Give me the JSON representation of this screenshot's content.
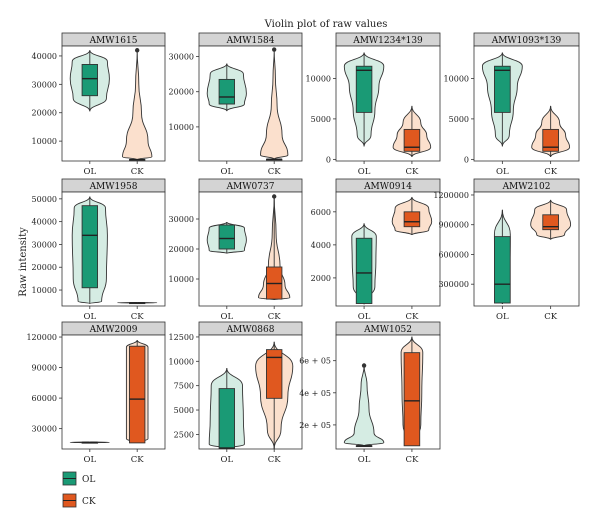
{
  "title": "Violin plot of raw values",
  "ylabel": "Raw intensity",
  "colors": {
    "OL": "#1a9a75",
    "CK": "#e0581f",
    "OL_violin": "#d5ece3",
    "CK_violin": "#fbe0cd",
    "strip": "#d4d4d4"
  },
  "legend": [
    {
      "label": "OL",
      "color": "#1a9a75"
    },
    {
      "label": "CK",
      "color": "#e0581f"
    }
  ],
  "chart_data": [
    {
      "type": "violin",
      "title": "AMW1615",
      "categories": [
        "OL",
        "CK"
      ],
      "ylim": [
        3000,
        43500
      ],
      "yticks": [
        10000,
        20000,
        30000,
        40000
      ],
      "ytick_labels": [
        "10000",
        "20000",
        "30000",
        "40000"
      ],
      "series": [
        {
          "name": "OL",
          "violin": [
            [
              20500,
              0
            ],
            [
              25000,
              0.85
            ],
            [
              32000,
              1.0
            ],
            [
              38000,
              0.9
            ],
            [
              42000,
              0
            ]
          ],
          "box": {
            "min": 20500,
            "q1": 26000,
            "median": 32000,
            "q3": 37000,
            "max": 42000
          },
          "outliers": []
        },
        {
          "name": "CK",
          "violin": [
            [
              3500,
              0
            ],
            [
              4500,
              0.75
            ],
            [
              10000,
              0.55
            ],
            [
              20000,
              0.22
            ],
            [
              30000,
              0.08
            ],
            [
              42000,
              0
            ]
          ],
          "box": {
            "min": 3500,
            "q1": 3500,
            "median": 3500,
            "q3": 3500,
            "max": 3500
          },
          "outliers": [
            42000
          ]
        }
      ]
    },
    {
      "type": "violin",
      "title": "AMW1584",
      "categories": [
        "OL",
        "CK"
      ],
      "ylim": [
        300,
        33000
      ],
      "yticks": [
        10000,
        20000,
        30000
      ],
      "ytick_labels": [
        "10000",
        "20000",
        "30000"
      ],
      "series": [
        {
          "name": "OL",
          "violin": [
            [
              14500,
              0
            ],
            [
              16500,
              0.9
            ],
            [
              19500,
              1.0
            ],
            [
              25000,
              0.85
            ],
            [
              28000,
              0
            ]
          ],
          "box": {
            "min": 14500,
            "q1": 16500,
            "median": 18500,
            "q3": 23500,
            "max": 28000
          },
          "outliers": []
        },
        {
          "name": "CK",
          "violin": [
            [
              800,
              0
            ],
            [
              2000,
              0.7
            ],
            [
              8000,
              0.4
            ],
            [
              16000,
              0.15
            ],
            [
              24000,
              0.06
            ],
            [
              32000,
              0
            ]
          ],
          "box": {
            "min": 800,
            "q1": 800,
            "median": 800,
            "q3": 800,
            "max": 800
          },
          "outliers": [
            32000
          ]
        }
      ]
    },
    {
      "type": "violin",
      "title": "AMW1234*139",
      "categories": [
        "OL",
        "CK"
      ],
      "ylim": [
        -200,
        14000
      ],
      "yticks": [
        0,
        5000,
        10000
      ],
      "ytick_labels": [
        "0",
        "5000",
        "10000"
      ],
      "series": [
        {
          "name": "OL",
          "violin": [
            [
              1600,
              0
            ],
            [
              3000,
              0.35
            ],
            [
              6000,
              0.55
            ],
            [
              9000,
              0.75
            ],
            [
              11500,
              1.0
            ],
            [
              13200,
              0
            ]
          ],
          "box": {
            "min": 1600,
            "q1": 5800,
            "median": 11000,
            "q3": 11500,
            "max": 13200
          },
          "outliers": []
        },
        {
          "name": "CK",
          "violin": [
            [
              300,
              0
            ],
            [
              1500,
              0.95
            ],
            [
              3000,
              0.75
            ],
            [
              4500,
              0.45
            ],
            [
              6600,
              0
            ]
          ],
          "box": {
            "min": 300,
            "q1": 1000,
            "median": 1500,
            "q3": 3700,
            "max": 6600
          },
          "outliers": []
        }
      ]
    },
    {
      "type": "violin",
      "title": "AMW1093*139",
      "categories": [
        "OL",
        "CK"
      ],
      "ylim": [
        -200,
        14000
      ],
      "yticks": [
        0,
        5000,
        10000
      ],
      "ytick_labels": [
        "0",
        "5000",
        "10000"
      ],
      "series": [
        {
          "name": "OL",
          "violin": [
            [
              1600,
              0
            ],
            [
              3000,
              0.35
            ],
            [
              6000,
              0.55
            ],
            [
              9000,
              0.75
            ],
            [
              11500,
              1.0
            ],
            [
              13200,
              0
            ]
          ],
          "box": {
            "min": 1600,
            "q1": 5800,
            "median": 11000,
            "q3": 11500,
            "max": 13200
          },
          "outliers": []
        },
        {
          "name": "CK",
          "violin": [
            [
              300,
              0
            ],
            [
              1500,
              0.95
            ],
            [
              3000,
              0.75
            ],
            [
              4500,
              0.45
            ],
            [
              6600,
              0
            ]
          ],
          "box": {
            "min": 300,
            "q1": 1000,
            "median": 1500,
            "q3": 3700,
            "max": 6600
          },
          "outliers": []
        }
      ]
    },
    {
      "type": "violin",
      "title": "AMW1958",
      "categories": [
        "OL",
        "CK"
      ],
      "ylim": [
        3000,
        53000
      ],
      "yticks": [
        10000,
        20000,
        30000,
        40000,
        50000
      ],
      "ytick_labels": [
        "10000",
        "20000",
        "30000",
        "40000",
        "50000"
      ],
      "series": [
        {
          "name": "OL",
          "violin": [
            [
              4000,
              0
            ],
            [
              5000,
              0.6
            ],
            [
              15000,
              0.85
            ],
            [
              34000,
              0.9
            ],
            [
              46000,
              0.8
            ],
            [
              51000,
              0
            ]
          ],
          "box": {
            "min": 4000,
            "q1": 11000,
            "median": 34000,
            "q3": 47000,
            "max": 51000
          },
          "outliers": []
        },
        {
          "name": "CK",
          "violin": [
            [
              4300,
              0
            ],
            [
              4400,
              1.0
            ],
            [
              4600,
              0
            ]
          ],
          "box": {
            "min": 4400,
            "q1": 4400,
            "median": 4400,
            "q3": 4400,
            "max": 4400
          },
          "outliers": []
        }
      ]
    },
    {
      "type": "violin",
      "title": "AMW0737",
      "categories": [
        "OL",
        "CK"
      ],
      "ylim": [
        1000,
        39000
      ],
      "yticks": [
        10000,
        20000,
        30000
      ],
      "ytick_labels": [
        "10000",
        "20000",
        "30000"
      ],
      "series": [
        {
          "name": "OL",
          "violin": [
            [
              18500,
              0
            ],
            [
              19500,
              0.9
            ],
            [
              23000,
              1.0
            ],
            [
              27000,
              0.9
            ],
            [
              29000,
              0
            ]
          ],
          "box": {
            "min": 18500,
            "q1": 20000,
            "median": 23500,
            "q3": 28000,
            "max": 29000
          },
          "outliers": []
        },
        {
          "name": "CK",
          "violin": [
            [
              3000,
              0
            ],
            [
              3800,
              0.8
            ],
            [
              8000,
              0.55
            ],
            [
              14000,
              0.3
            ],
            [
              25000,
              0.1
            ],
            [
              37500,
              0
            ]
          ],
          "box": {
            "min": 3000,
            "q1": 3300,
            "median": 8500,
            "q3": 14000,
            "max": 37500
          },
          "outliers": [
            37500
          ]
        }
      ]
    },
    {
      "type": "violin",
      "title": "AMW0914",
      "categories": [
        "OL",
        "CK"
      ],
      "ylim": [
        300,
        7200
      ],
      "yticks": [
        2000,
        4000,
        6000
      ],
      "ytick_labels": [
        "2000",
        "4000",
        "6000"
      ],
      "series": [
        {
          "name": "OL",
          "violin": [
            [
              400,
              0
            ],
            [
              1500,
              0.55
            ],
            [
              3000,
              0.6
            ],
            [
              4500,
              0.62
            ],
            [
              5300,
              0
            ]
          ],
          "box": {
            "min": 400,
            "q1": 450,
            "median": 2300,
            "q3": 4400,
            "max": 5300
          },
          "outliers": []
        },
        {
          "name": "CK",
          "violin": [
            [
              4600,
              0
            ],
            [
              4900,
              0.85
            ],
            [
              5400,
              1.0
            ],
            [
              6200,
              0.85
            ],
            [
              6900,
              0
            ]
          ],
          "box": {
            "min": 4600,
            "q1": 5100,
            "median": 5400,
            "q3": 6000,
            "max": 6900
          },
          "outliers": []
        }
      ]
    },
    {
      "type": "violin",
      "title": "AMW2102",
      "categories": [
        "OL",
        "CK"
      ],
      "ylim": [
        80000,
        1230000
      ],
      "yticks": [
        300000,
        600000,
        900000,
        1200000
      ],
      "ytick_labels": [
        "300000",
        "600000",
        "900000",
        "1200000"
      ],
      "series": [
        {
          "name": "OL",
          "violin": [
            [
              100000,
              0
            ],
            [
              150000,
              0.35
            ],
            [
              400000,
              0.38
            ],
            [
              800000,
              0.4
            ],
            [
              1050000,
              0
            ]
          ],
          "box": {
            "min": 100000,
            "q1": 110000,
            "median": 300000,
            "q3": 780000,
            "max": 1050000
          },
          "outliers": []
        },
        {
          "name": "CK",
          "violin": [
            [
              750000,
              0
            ],
            [
              800000,
              0.7
            ],
            [
              900000,
              1.0
            ],
            [
              1050000,
              0.8
            ],
            [
              1150000,
              0
            ]
          ],
          "box": {
            "min": 750000,
            "q1": 850000,
            "median": 880000,
            "q3": 1000000,
            "max": 1150000
          },
          "outliers": []
        }
      ]
    },
    {
      "type": "violin",
      "title": "AMW2009",
      "categories": [
        "OL",
        "CK"
      ],
      "ylim": [
        10000,
        122000
      ],
      "yticks": [
        30000,
        60000,
        90000,
        120000
      ],
      "ytick_labels": [
        "30000",
        "60000",
        "90000",
        "120000"
      ],
      "series": [
        {
          "name": "OL",
          "violin": [
            [
              16000,
              0
            ],
            [
              16500,
              1.0
            ],
            [
              17000,
              0
            ]
          ],
          "box": {
            "min": 16500,
            "q1": 16500,
            "median": 16500,
            "q3": 16500,
            "max": 16500
          },
          "outliers": []
        },
        {
          "name": "CK",
          "violin": [
            [
              16000,
              0
            ],
            [
              20000,
              0.55
            ],
            [
              60000,
              0.55
            ],
            [
              110000,
              0.55
            ],
            [
              117000,
              0
            ]
          ],
          "box": {
            "min": 16000,
            "q1": 16000,
            "median": 59000,
            "q3": 111000,
            "max": 117000
          },
          "outliers": []
        }
      ]
    },
    {
      "type": "violin",
      "title": "AMW0868",
      "categories": [
        "OL",
        "CK"
      ],
      "ylim": [
        1000,
        12700
      ],
      "yticks": [
        2500,
        5000,
        7500,
        10000,
        12500
      ],
      "ytick_labels": [
        "2500",
        "5000",
        "7500",
        "10000",
        "12500"
      ],
      "series": [
        {
          "name": "OL",
          "violin": [
            [
              1000,
              0
            ],
            [
              1500,
              0.9
            ],
            [
              4000,
              0.85
            ],
            [
              7500,
              0.8
            ],
            [
              9300,
              0
            ]
          ],
          "box": {
            "min": 1000,
            "q1": 1050,
            "median": 1100,
            "q3": 7200,
            "max": 9300
          },
          "outliers": []
        },
        {
          "name": "CK",
          "violin": [
            [
              1000,
              0
            ],
            [
              3000,
              0.35
            ],
            [
              6500,
              0.7
            ],
            [
              9500,
              0.95
            ],
            [
              12000,
              0
            ]
          ],
          "box": {
            "min": 1000,
            "q1": 6200,
            "median": 10400,
            "q3": 11200,
            "max": 12000
          },
          "outliers": []
        }
      ]
    },
    {
      "type": "violin",
      "title": "AMW1052",
      "categories": [
        "OL",
        "CK"
      ],
      "ylim": [
        50000,
        760000
      ],
      "yticks": [
        200000,
        400000,
        600000
      ],
      "ytick_labels": [
        "2e + 05",
        "4e + 05",
        "6e + 05"
      ],
      "series": [
        {
          "name": "OL",
          "violin": [
            [
              70000,
              0
            ],
            [
              90000,
              1.0
            ],
            [
              150000,
              0.5
            ],
            [
              300000,
              0.25
            ],
            [
              450000,
              0.15
            ],
            [
              570000,
              0
            ]
          ],
          "box": {
            "min": 70000,
            "q1": 70000,
            "median": 70000,
            "q3": 70000,
            "max": 70000
          },
          "outliers": [
            570000
          ]
        },
        {
          "name": "CK",
          "violin": [
            [
              70000,
              0
            ],
            [
              200000,
              0.45
            ],
            [
              400000,
              0.5
            ],
            [
              650000,
              0.55
            ],
            [
              750000,
              0
            ]
          ],
          "box": {
            "min": 70000,
            "q1": 70000,
            "median": 350000,
            "q3": 650000,
            "max": 750000
          },
          "outliers": []
        }
      ]
    }
  ]
}
